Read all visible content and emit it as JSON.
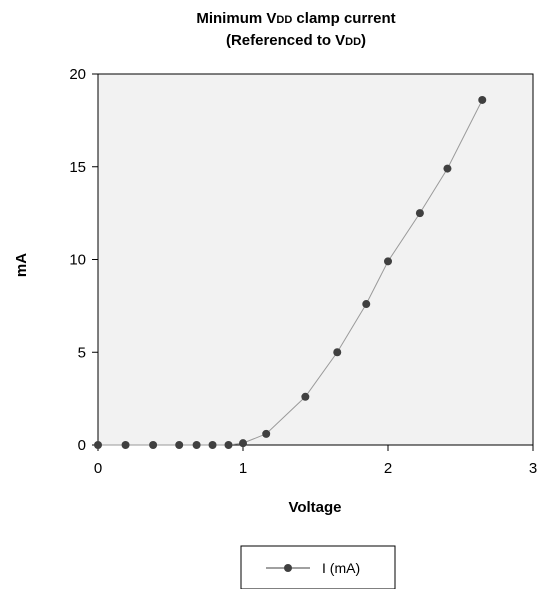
{
  "chart_data": {
    "type": "line",
    "title_line1_pre": "Minimum V",
    "title_line1_sub": "DD",
    "title_line1_post": " clamp current",
    "title_line2_pre": "(Referenced to V",
    "title_line2_sub": "DD",
    "title_line2_post": ")",
    "xlabel": "Voltage",
    "ylabel": "mA",
    "xlim": [
      0,
      3
    ],
    "ylim": [
      0,
      20
    ],
    "x_ticks": [
      "0",
      "1",
      "2",
      "3"
    ],
    "y_ticks": [
      "0",
      "5",
      "10",
      "15",
      "20"
    ],
    "grid": false,
    "legend_position": "bottom-center",
    "colors": {
      "plot_bg": "#f2f2f2",
      "series": "#404040",
      "line": "#9a9a9a"
    },
    "series": [
      {
        "name": "I (mA)",
        "x": [
          0,
          0.19,
          0.38,
          0.56,
          0.68,
          0.79,
          0.9,
          1.0,
          1.16,
          1.43,
          1.65,
          1.85,
          2.0,
          2.22,
          2.41,
          2.65
        ],
        "y": [
          0,
          0,
          0,
          0,
          0,
          0,
          0,
          0.1,
          0.6,
          2.6,
          5.0,
          7.6,
          9.9,
          12.5,
          14.9,
          18.6
        ]
      }
    ]
  }
}
